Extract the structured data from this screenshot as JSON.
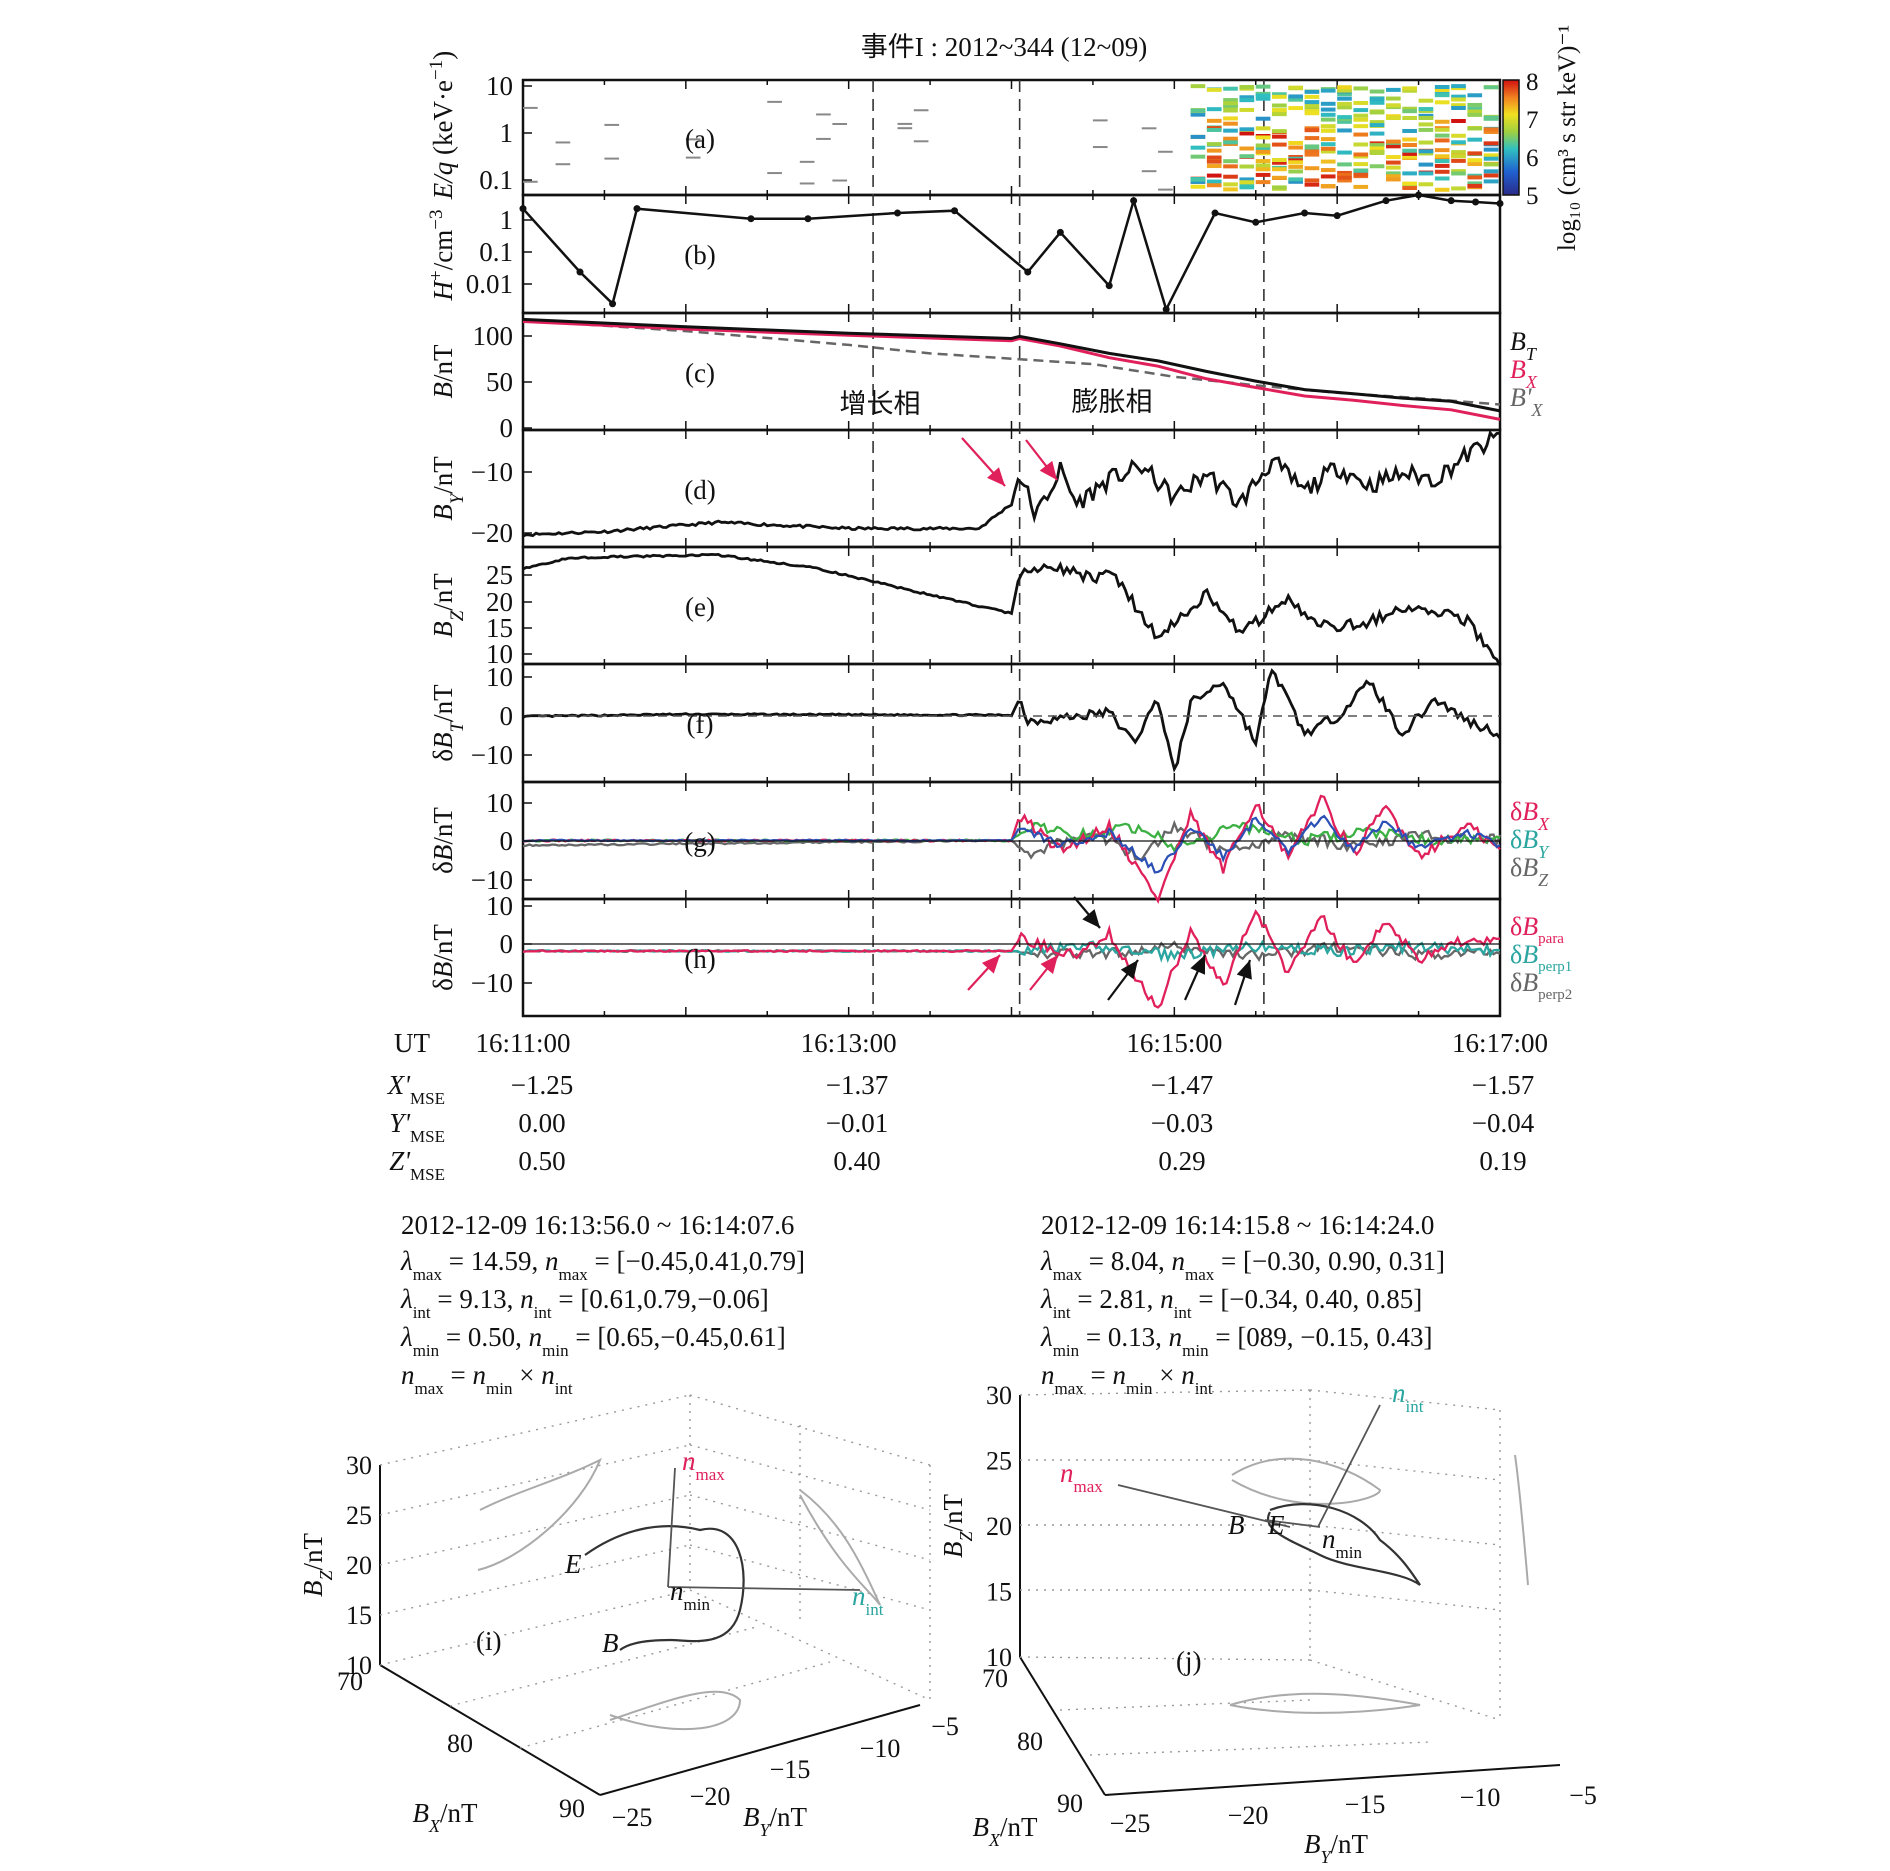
{
  "title": "事件I : 2012~344 (12~09)",
  "panels": {
    "a": {
      "tag": "(a)",
      "ylabel": "E/q (keV·e⁻¹)",
      "yticks": [
        "10",
        "1",
        "0.1"
      ],
      "colorbar": {
        "label": "log₁₀ (cm³ s str keV)⁻¹",
        "ticks": [
          "8",
          "7",
          "6",
          "5"
        ]
      }
    },
    "b": {
      "tag": "(b)",
      "ylabel": "H⁺/cm⁻³",
      "yticks": [
        "1",
        "0.1",
        "0.01"
      ]
    },
    "c": {
      "tag": "(c)",
      "ylabel": "B/nT",
      "yticks": [
        "100",
        "50",
        "0"
      ],
      "legend": [
        "B_T",
        "B_X",
        "B'_X"
      ],
      "phase_growth": "增长相",
      "phase_expansion": "膨胀相"
    },
    "d": {
      "tag": "(d)",
      "ylabel": "B_Y/nT",
      "yticks": [
        "−10",
        "−20"
      ]
    },
    "e": {
      "tag": "(e)",
      "ylabel": "B_Z/nT",
      "yticks": [
        "25",
        "20",
        "15",
        "10"
      ]
    },
    "f": {
      "tag": "(f)",
      "ylabel": "δB_T/nT",
      "yticks": [
        "10",
        "0",
        "−10"
      ]
    },
    "g": {
      "tag": "(g)",
      "ylabel": "δB/nT",
      "yticks": [
        "10",
        "0",
        "−10"
      ],
      "legend": [
        "δB_X",
        "δB_Y",
        "δB_Z"
      ]
    },
    "h": {
      "tag": "(h)",
      "ylabel": "δB/nT",
      "yticks": [
        "10",
        "0",
        "−10"
      ],
      "legend": [
        "δB_para",
        "δB_perp1",
        "δB_perp2"
      ]
    }
  },
  "time_axis": {
    "ut_label": "UT",
    "ticks": [
      "16:11:00",
      "16:13:00",
      "16:15:00",
      "16:17:00"
    ],
    "rows": [
      {
        "label": "X'",
        "sub": "MSE",
        "values": [
          "−1.25",
          "−1.37",
          "−1.47",
          "−1.57"
        ]
      },
      {
        "label": "Y'",
        "sub": "MSE",
        "values": [
          "0.00",
          "−0.01",
          "−0.03",
          "−0.04"
        ]
      },
      {
        "label": "Z'",
        "sub": "MSE",
        "values": [
          "0.50",
          "0.40",
          "0.29",
          "0.19"
        ]
      }
    ]
  },
  "colors": {
    "red": "#e0205a",
    "green": "#3cb043",
    "blue": "#2b4fb4",
    "gray": "#666666",
    "black": "#111111",
    "cyan": "#2aa5a0",
    "orange": "#e58a1f"
  },
  "mva": [
    {
      "interval": "2012-12-09 16:13:56.0 ~ 16:14:07.6",
      "lines": [
        {
          "sym": "λ",
          "sub": "max",
          "value": " = 14.59, ",
          "vsym": "n",
          "vsub": "max",
          "vec": " = [−0.45,0.41,0.79]"
        },
        {
          "sym": "λ",
          "sub": "int",
          "value": " = 9.13, ",
          "vsym": "n",
          "vsub": "int",
          "vec": " = [0.61,0.79,−0.06]"
        },
        {
          "sym": "λ",
          "sub": "min",
          "value": " = 0.50, ",
          "vsym": "n",
          "vsub": "min",
          "vec": " = [0.65,−0.45,0.61]"
        }
      ],
      "relation": {
        "lhs": "max",
        "op1": "min",
        "op2": "int"
      },
      "plot_tag": "(i)",
      "axes": {
        "bz_label": "B_Z/nT",
        "bz_ticks": [
          "30",
          "25",
          "20",
          "15",
          "10"
        ],
        "bx_label": "B_X/nT",
        "bx_ticks": [
          "70",
          "80",
          "90"
        ],
        "by_label": "B_Y/nT",
        "by_ticks": [
          "−25",
          "−20",
          "−15",
          "−10",
          "−5"
        ]
      },
      "labels": {
        "E": "E",
        "B": "B",
        "nmax": "max",
        "nmin": "min",
        "nint": "int"
      }
    },
    {
      "interval": "2012-12-09 16:14:15.8 ~ 16:14:24.0",
      "lines": [
        {
          "sym": "λ",
          "sub": "max",
          "value": " = 8.04, ",
          "vsym": "n",
          "vsub": "max",
          "vec": " = [−0.30, 0.90, 0.31]"
        },
        {
          "sym": "λ",
          "sub": "int",
          "value": " = 2.81, ",
          "vsym": "n",
          "vsub": "int",
          "vec": " = [−0.34, 0.40, 0.85]"
        },
        {
          "sym": "λ",
          "sub": "min",
          "value": " = 0.13, ",
          "vsym": "n",
          "vsub": "min",
          "vec": " = [089, −0.15, 0.43]"
        }
      ],
      "relation": {
        "lhs": "max",
        "op1": "min",
        "op2": "int"
      },
      "plot_tag": "(j)",
      "axes": {
        "bz_label": "B_Z/nT",
        "bz_ticks": [
          "30",
          "25",
          "20",
          "15",
          "10"
        ],
        "bx_label": "B_X/nT",
        "bx_ticks": [
          "70",
          "80",
          "90"
        ],
        "by_label": "B_Y/nT",
        "by_ticks": [
          "−25",
          "−20",
          "−15",
          "−10",
          "−5"
        ]
      },
      "labels": {
        "E": "E",
        "B": "B",
        "nmax": "max",
        "nmin": "min",
        "nint": "int"
      }
    }
  ],
  "chart_data": [
    {
      "type": "heatmap",
      "panel": "a",
      "x_range": [
        "16:11:00",
        "16:17:00"
      ],
      "ylim": [
        0.1,
        10
      ],
      "yscale": "log",
      "colorbar_range": [
        5,
        8
      ],
      "description_free": "energy spectrum"
    },
    {
      "type": "scatter",
      "panel": "b",
      "yscale": "log",
      "ylim": [
        0.005,
        2
      ],
      "x_min": [
        0.0,
        0.35,
        0.55,
        0.7,
        1.4,
        1.75,
        2.3,
        2.65,
        3.1,
        3.3,
        3.6,
        3.75,
        3.95,
        4.25,
        4.5,
        4.8,
        5.0,
        5.3,
        5.5,
        5.7,
        5.85,
        6.0
      ],
      "values": [
        1.0,
        0.04,
        0.008,
        1.0,
        0.6,
        0.6,
        0.8,
        0.9,
        0.04,
        0.3,
        0.02,
        1.5,
        0.006,
        0.8,
        0.5,
        0.8,
        0.7,
        1.5,
        2.0,
        1.5,
        1.4,
        1.3
      ]
    },
    {
      "type": "line",
      "panel": "c",
      "ylim": [
        0,
        110
      ],
      "series": [
        {
          "name": "B_T",
          "x_min": [
            0,
            1,
            2,
            3,
            3.05,
            3.3,
            3.6,
            3.9,
            4.2,
            4.5,
            4.8,
            5.1,
            5.4,
            5.7,
            6.0
          ],
          "values": [
            104,
            97,
            91,
            86,
            88,
            81,
            72,
            65,
            55,
            46,
            38,
            34,
            30,
            27,
            18
          ]
        },
        {
          "name": "B_X",
          "x_min": [
            0,
            1,
            2,
            3,
            3.05,
            3.3,
            3.6,
            3.9,
            4.2,
            4.5,
            4.8,
            5.1,
            5.4,
            5.7,
            6.0
          ],
          "values": [
            102,
            95,
            89,
            84,
            86,
            79,
            68,
            60,
            48,
            40,
            32,
            28,
            23,
            19,
            10
          ]
        },
        {
          "name": "B'_X",
          "x_min": [
            0,
            1,
            2,
            2.5,
            3,
            3.5,
            4,
            4.5,
            5,
            5.5,
            6.0
          ],
          "values": [
            103,
            93,
            80,
            72,
            67,
            62,
            50,
            42,
            35,
            30,
            24
          ]
        }
      ]
    },
    {
      "type": "line",
      "panel": "d",
      "ylim": [
        -22,
        -3
      ],
      "x_min": [
        0,
        0.5,
        1.2,
        2.0,
        2.8,
        3.0,
        3.05,
        3.15,
        3.3,
        3.4,
        3.6,
        3.8,
        4.0,
        4.2,
        4.4,
        4.6,
        4.8,
        5.0,
        5.2,
        5.4,
        5.6,
        5.8,
        6.0
      ],
      "values": [
        -20,
        -19.5,
        -18,
        -19,
        -19,
        -15,
        -10,
        -17,
        -9.5,
        -15,
        -11,
        -9,
        -14,
        -10,
        -15,
        -8,
        -13,
        -9,
        -12,
        -10,
        -11,
        -7,
        -4
      ]
    },
    {
      "type": "line",
      "panel": "e",
      "ylim": [
        8,
        30
      ],
      "x_min": [
        0,
        0.3,
        1.2,
        1.8,
        2.5,
        3.0,
        3.05,
        3.3,
        3.5,
        3.6,
        3.9,
        4.2,
        4.4,
        4.7,
        4.9,
        5.2,
        5.5,
        5.8,
        6.0
      ],
      "values": [
        26,
        28,
        28.5,
        26,
        21,
        17.5,
        25,
        26,
        24,
        26,
        13,
        21,
        14,
        20,
        15,
        16,
        19,
        16,
        8
      ]
    },
    {
      "type": "line",
      "panel": "f",
      "ylim": [
        -15,
        12
      ],
      "x_min": [
        0,
        1,
        2,
        3.0,
        3.05,
        3.1,
        3.4,
        3.6,
        3.75,
        3.9,
        4.0,
        4.1,
        4.3,
        4.5,
        4.6,
        4.8,
        5.0,
        5.2,
        5.4,
        5.6,
        5.8,
        6.0
      ],
      "values": [
        0,
        0.5,
        0.4,
        0.3,
        4,
        -1,
        0,
        1,
        -6,
        4,
        -13,
        3,
        8,
        -6,
        11,
        -4,
        0,
        8,
        -4,
        4,
        -1,
        -4
      ]
    },
    {
      "type": "line",
      "panel": "g",
      "ylim": [
        -12,
        12
      ],
      "series": [
        {
          "name": "δB_X",
          "x_min": [
            0,
            3.0,
            3.05,
            3.3,
            3.6,
            3.8,
            3.9,
            4.1,
            4.3,
            4.5,
            4.7,
            4.9,
            5.1,
            5.3,
            5.5,
            5.8,
            6.0
          ],
          "values": [
            0,
            0,
            5,
            -2,
            3,
            -7,
            -12,
            5,
            -6,
            8,
            -4,
            9,
            -3,
            7,
            -3,
            3,
            -2
          ]
        },
        {
          "name": "δB_Y",
          "x_min": [
            0,
            3.0,
            3.1,
            3.4,
            3.8,
            4.0,
            4.4,
            4.8,
            5.2,
            5.6,
            6.0
          ],
          "values": [
            0,
            0,
            3,
            1,
            3,
            -1,
            3,
            0,
            2,
            0,
            1
          ]
        },
        {
          "name": "δB_Z",
          "x_min": [
            0,
            3.0,
            3.1,
            3.5,
            3.8,
            4.0,
            4.3,
            4.7,
            5.1,
            5.5,
            6.0
          ],
          "values": [
            -1,
            0,
            -3,
            2,
            -4,
            3,
            -2,
            1,
            -1,
            1,
            0
          ]
        }
      ]
    },
    {
      "type": "line",
      "panel": "h",
      "ylim": [
        -15,
        12
      ],
      "series": [
        {
          "name": "δB_para",
          "x_min": [
            0,
            3.0,
            3.05,
            3.4,
            3.6,
            3.8,
            3.9,
            4.1,
            4.3,
            4.5,
            4.7,
            4.9,
            5.1,
            5.3,
            5.5,
            5.8,
            6.0
          ],
          "values": [
            0,
            0,
            3,
            -1,
            4,
            -8,
            -13,
            5,
            -8,
            9,
            -5,
            8,
            -3,
            7,
            -2,
            3,
            2
          ]
        },
        {
          "name": "δB_perp1",
          "x_min": [
            0,
            3.0,
            3.5,
            4.0,
            4.5,
            5.0,
            5.5,
            6.0
          ],
          "values": [
            0,
            0,
            1,
            -1,
            1,
            0,
            1,
            0
          ]
        },
        {
          "name": "δB_perp2",
          "x_min": [
            0,
            3.0,
            3.5,
            4.0,
            4.5,
            5.0,
            5.5,
            6.0
          ],
          "values": [
            0,
            0,
            -1,
            1,
            -1,
            1,
            -1,
            0
          ]
        }
      ]
    }
  ]
}
